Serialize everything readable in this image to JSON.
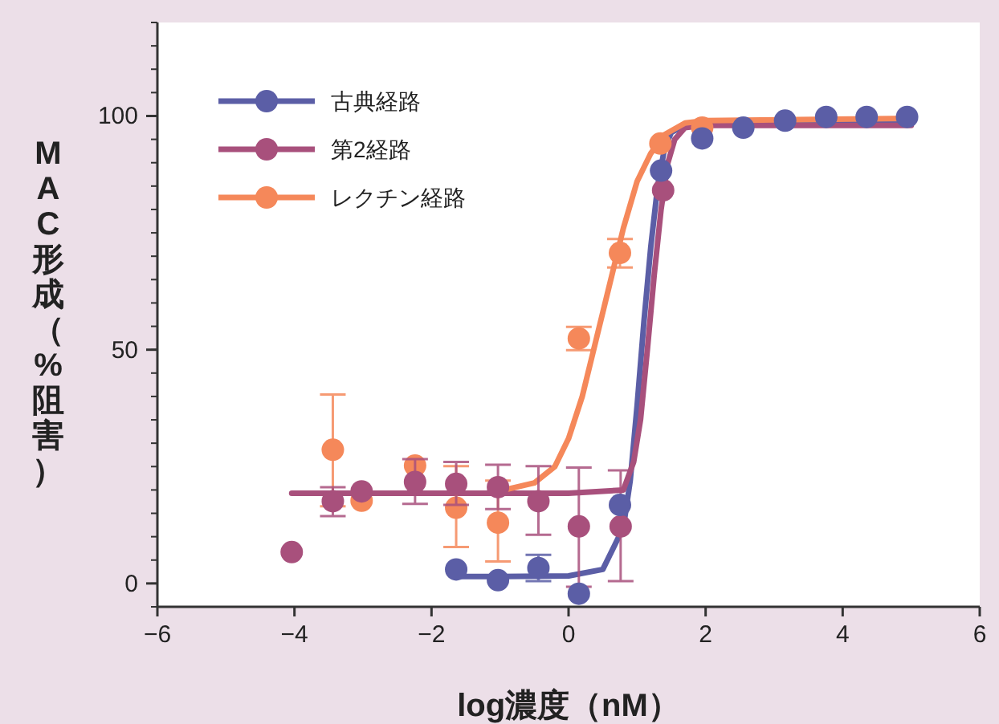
{
  "chart_data": {
    "type": "scatter",
    "xlabel": "log濃度（nM）",
    "ylabel": "MAC形成（%阻害）",
    "xlim": [
      -6,
      6
    ],
    "ylim": [
      -5,
      120
    ],
    "xticks": [
      {
        "value": -6,
        "label": "−6"
      },
      {
        "value": -4,
        "label": "−4"
      },
      {
        "value": -2,
        "label": "−2"
      },
      0,
      2,
      4,
      {
        "value": 6,
        "label": "6"
      }
    ],
    "yticks": [
      0,
      50,
      100
    ],
    "grid": false,
    "legend": "top left",
    "marker": "circle",
    "series": [
      {
        "name": "古典経路",
        "color": "#5b5ea6",
        "x": [
          -1.64,
          -1.03,
          -0.44,
          0.15,
          0.75,
          1.35,
          1.95,
          2.55,
          3.16,
          3.76,
          4.35,
          4.94
        ],
        "values": [
          3.0,
          0.7,
          3.3,
          -2.2,
          16.8,
          88.3,
          95.2,
          97.5,
          99.0,
          99.8,
          99.8,
          99.8
        ],
        "errors": [
          null,
          null,
          [
            0.5,
            6.1
          ],
          null,
          null,
          null,
          null,
          null,
          null,
          null,
          null,
          null
        ]
      },
      {
        "name": "第2経路",
        "color": "#a8507c",
        "x": [
          -4.04,
          -3.44,
          -3.02,
          -2.24,
          -1.64,
          -1.03,
          -0.44,
          0.15,
          0.76,
          1.38
        ],
        "values": [
          6.7,
          17.6,
          19.7,
          21.7,
          21.3,
          20.6,
          17.6,
          12.2,
          12.2,
          84.1
        ],
        "errors": [
          null,
          [
            14.4,
            20.6
          ],
          null,
          [
            17.0,
            26.6
          ],
          [
            16.8,
            26.0
          ],
          [
            15.9,
            25.4
          ],
          [
            10.4,
            25.1
          ],
          [
            -0.7,
            24.8
          ],
          [
            0.5,
            24.2
          ],
          null
        ]
      },
      {
        "name": "レクチン経路",
        "color": "#f5885a",
        "x": [
          -3.44,
          -3.02,
          -2.24,
          -1.64,
          -1.03,
          0.15,
          0.75,
          1.34,
          1.95
        ],
        "values": [
          28.6,
          17.7,
          25.2,
          16.2,
          13.0,
          52.4,
          70.7,
          94.1,
          97.5
        ],
        "errors": [
          [
            16.5,
            40.4
          ],
          null,
          null,
          [
            7.8,
            25.1
          ],
          [
            4.7,
            22.0
          ],
          [
            49.9,
            54.9
          ],
          [
            67.6,
            73.7
          ],
          null,
          null
        ]
      },
      {
        "color": "#5b5ea6",
        "type": "line",
        "marker": "none",
        "x": [
          -1.64,
          -1.0,
          0.0,
          0.5,
          0.8,
          0.9,
          1.0,
          1.1,
          1.2,
          1.3,
          1.4,
          1.5,
          1.7,
          2.0,
          3.0,
          5.0
        ],
        "values": [
          1.5,
          1.5,
          1.6,
          3.0,
          12,
          22,
          38,
          56,
          72,
          85,
          93,
          96.5,
          98,
          98.5,
          98.8,
          98.8
        ]
      },
      {
        "color": "#a8507c",
        "type": "line",
        "marker": "none",
        "x": [
          -4.04,
          -2.0,
          0.0,
          0.8,
          0.95,
          1.05,
          1.15,
          1.25,
          1.35,
          1.45,
          1.55,
          1.7,
          2.0,
          5.0
        ],
        "values": [
          19.3,
          19.3,
          19.3,
          20,
          26,
          35,
          50,
          66,
          80,
          90,
          95,
          97.5,
          98,
          98
        ]
      },
      {
        "color": "#f5885a",
        "type": "line",
        "marker": "none",
        "x": [
          -1.0,
          -0.5,
          -0.2,
          0.0,
          0.2,
          0.4,
          0.6,
          0.8,
          1.0,
          1.2,
          1.4,
          1.7,
          2.0,
          5.0
        ],
        "values": [
          19.8,
          21.5,
          25,
          31,
          40,
          52,
          64,
          76,
          86,
          92,
          96,
          98.5,
          99,
          99.5
        ]
      }
    ]
  }
}
